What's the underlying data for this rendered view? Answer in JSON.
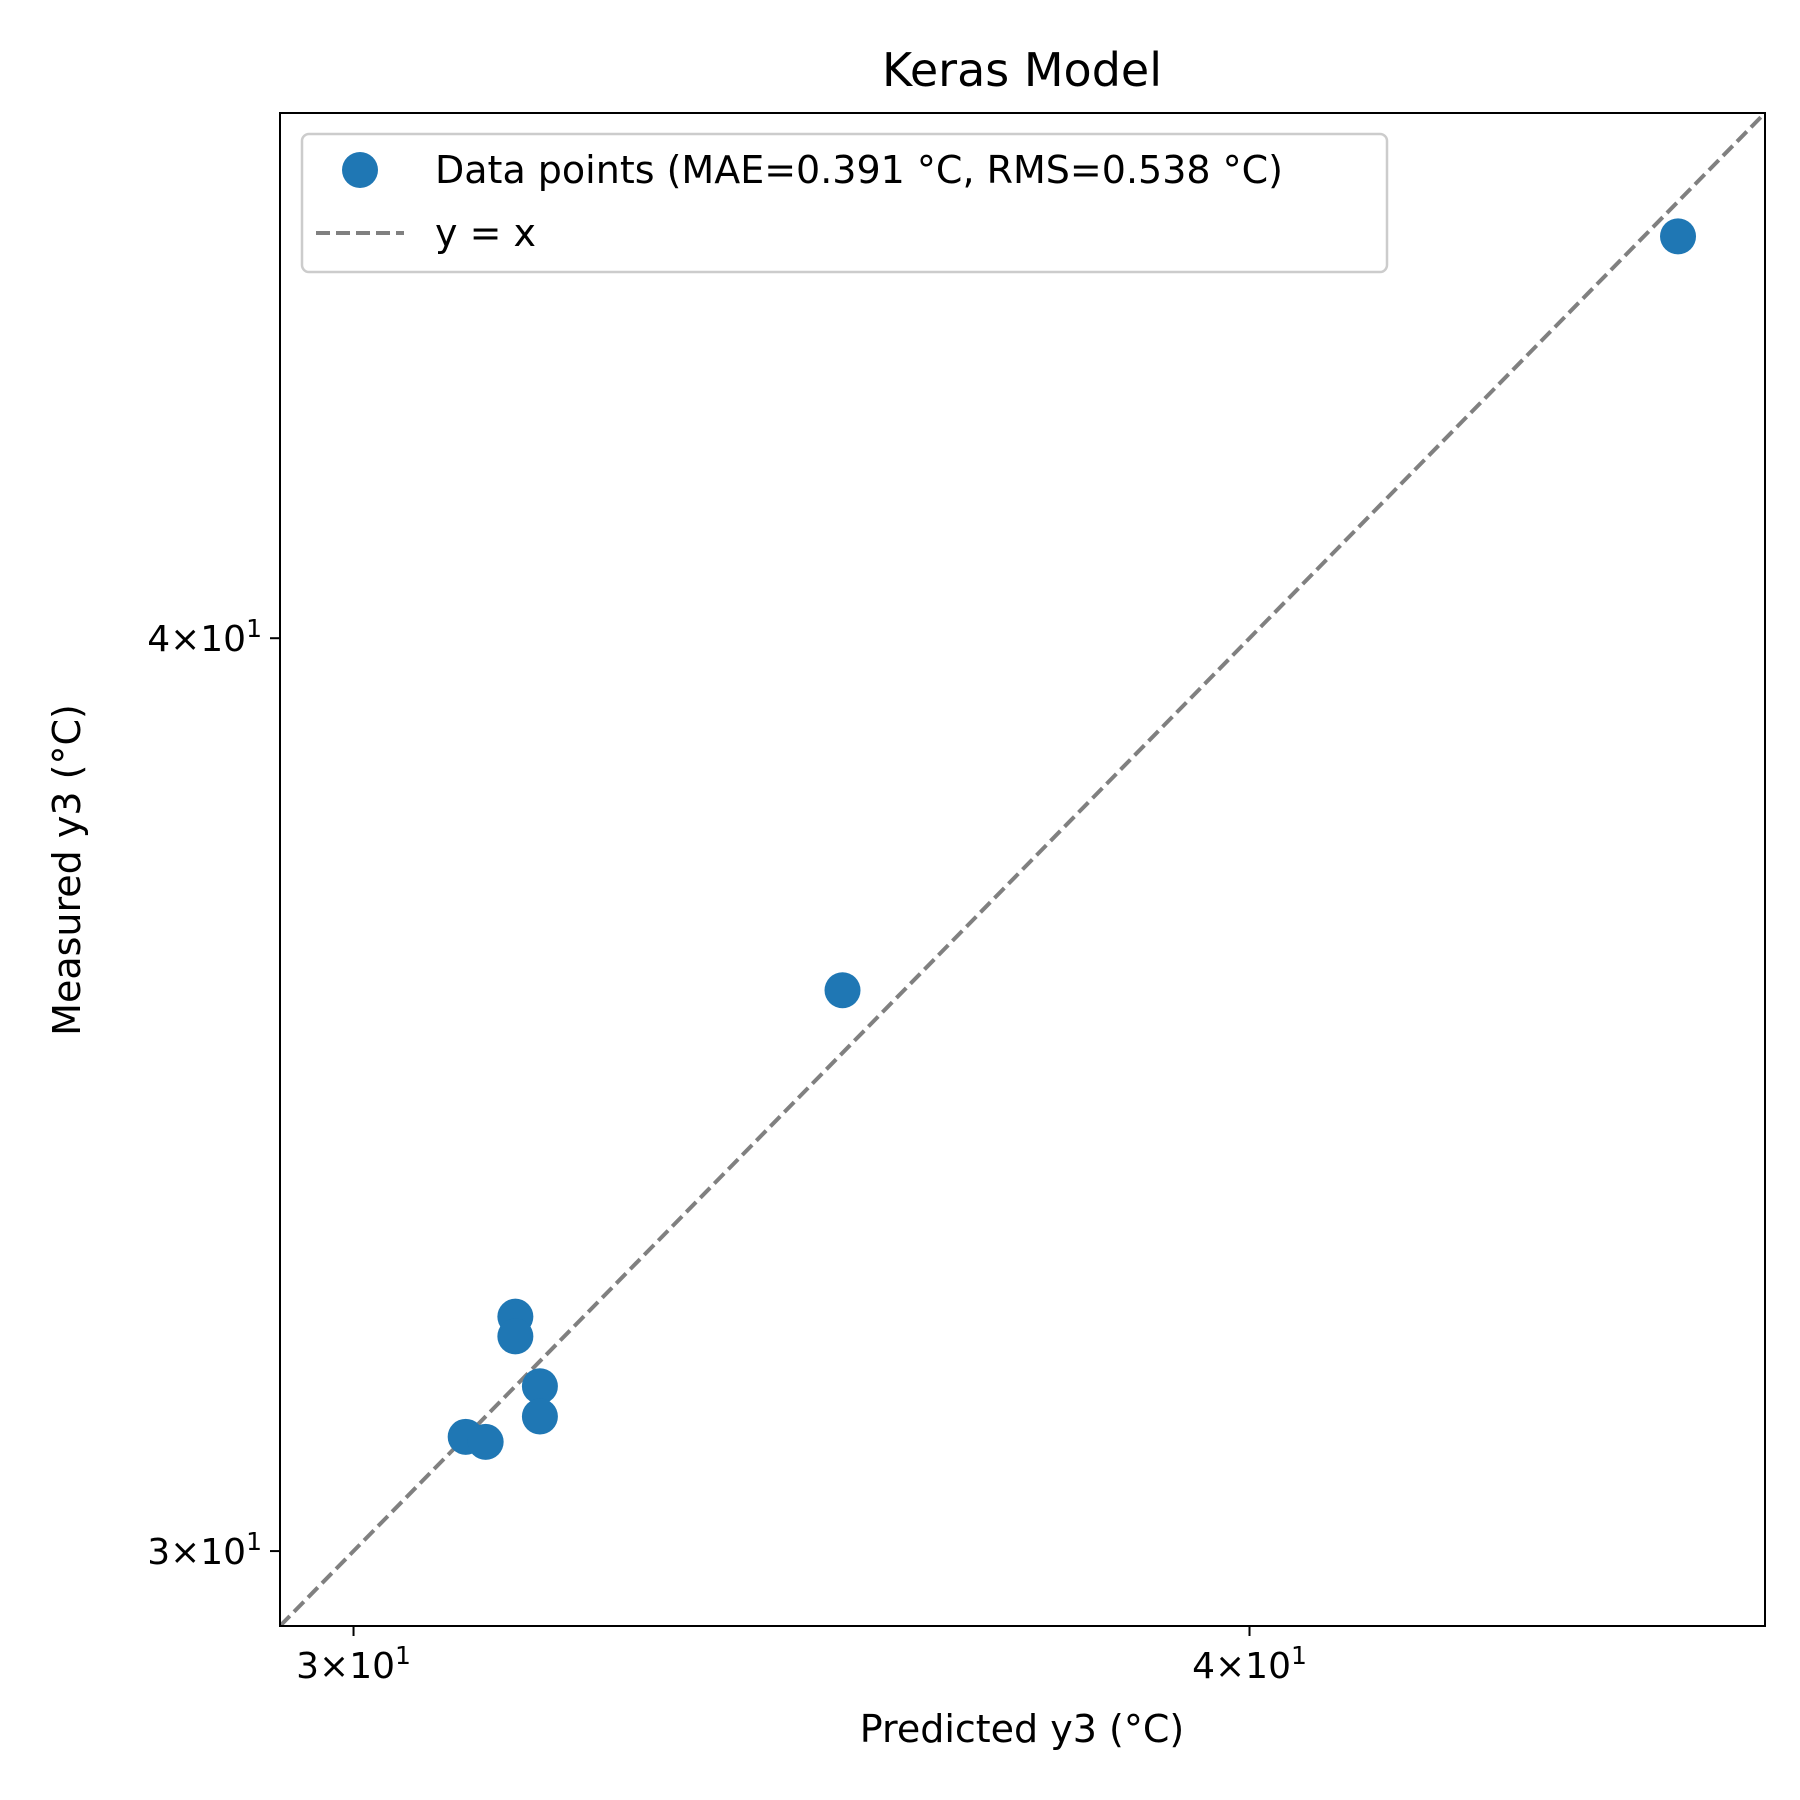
{
  "chart_data": {
    "type": "scatter",
    "title": "Keras Model",
    "xlabel": "Predicted y3 (°C)",
    "ylabel": "Measured y3 (°C)",
    "xscale": "log",
    "yscale": "log",
    "xlim": [
      29.3,
      47.2
    ],
    "ylim": [
      29.3,
      47.2
    ],
    "grid": false,
    "legend_position": "top-left",
    "x_ticks": [
      {
        "value": 30,
        "mantissa": "3",
        "base": "10",
        "exp": "1"
      },
      {
        "value": 40,
        "mantissa": "4",
        "base": "10",
        "exp": "1"
      }
    ],
    "y_ticks": [
      {
        "value": 30,
        "mantissa": "3",
        "base": "10",
        "exp": "1"
      },
      {
        "value": 40,
        "mantissa": "4",
        "base": "10",
        "exp": "1"
      }
    ],
    "series": [
      {
        "name": "Data points (MAE=0.391 °C, RMS=0.538 °C)",
        "kind": "scatter",
        "color": "#1f77b4",
        "points": [
          {
            "x": 31.1,
            "y": 31.1
          },
          {
            "x": 31.3,
            "y": 31.05
          },
          {
            "x": 31.6,
            "y": 32.3
          },
          {
            "x": 31.6,
            "y": 32.1
          },
          {
            "x": 31.85,
            "y": 31.6
          },
          {
            "x": 31.85,
            "y": 31.3
          },
          {
            "x": 35.1,
            "y": 35.8
          },
          {
            "x": 45.9,
            "y": 45.4
          }
        ]
      },
      {
        "name": "y = x",
        "kind": "line",
        "color": "#808080",
        "dash": "dashed",
        "points": [
          {
            "x": 29.3,
            "y": 29.3
          },
          {
            "x": 47.2,
            "y": 47.2
          }
        ]
      }
    ]
  }
}
